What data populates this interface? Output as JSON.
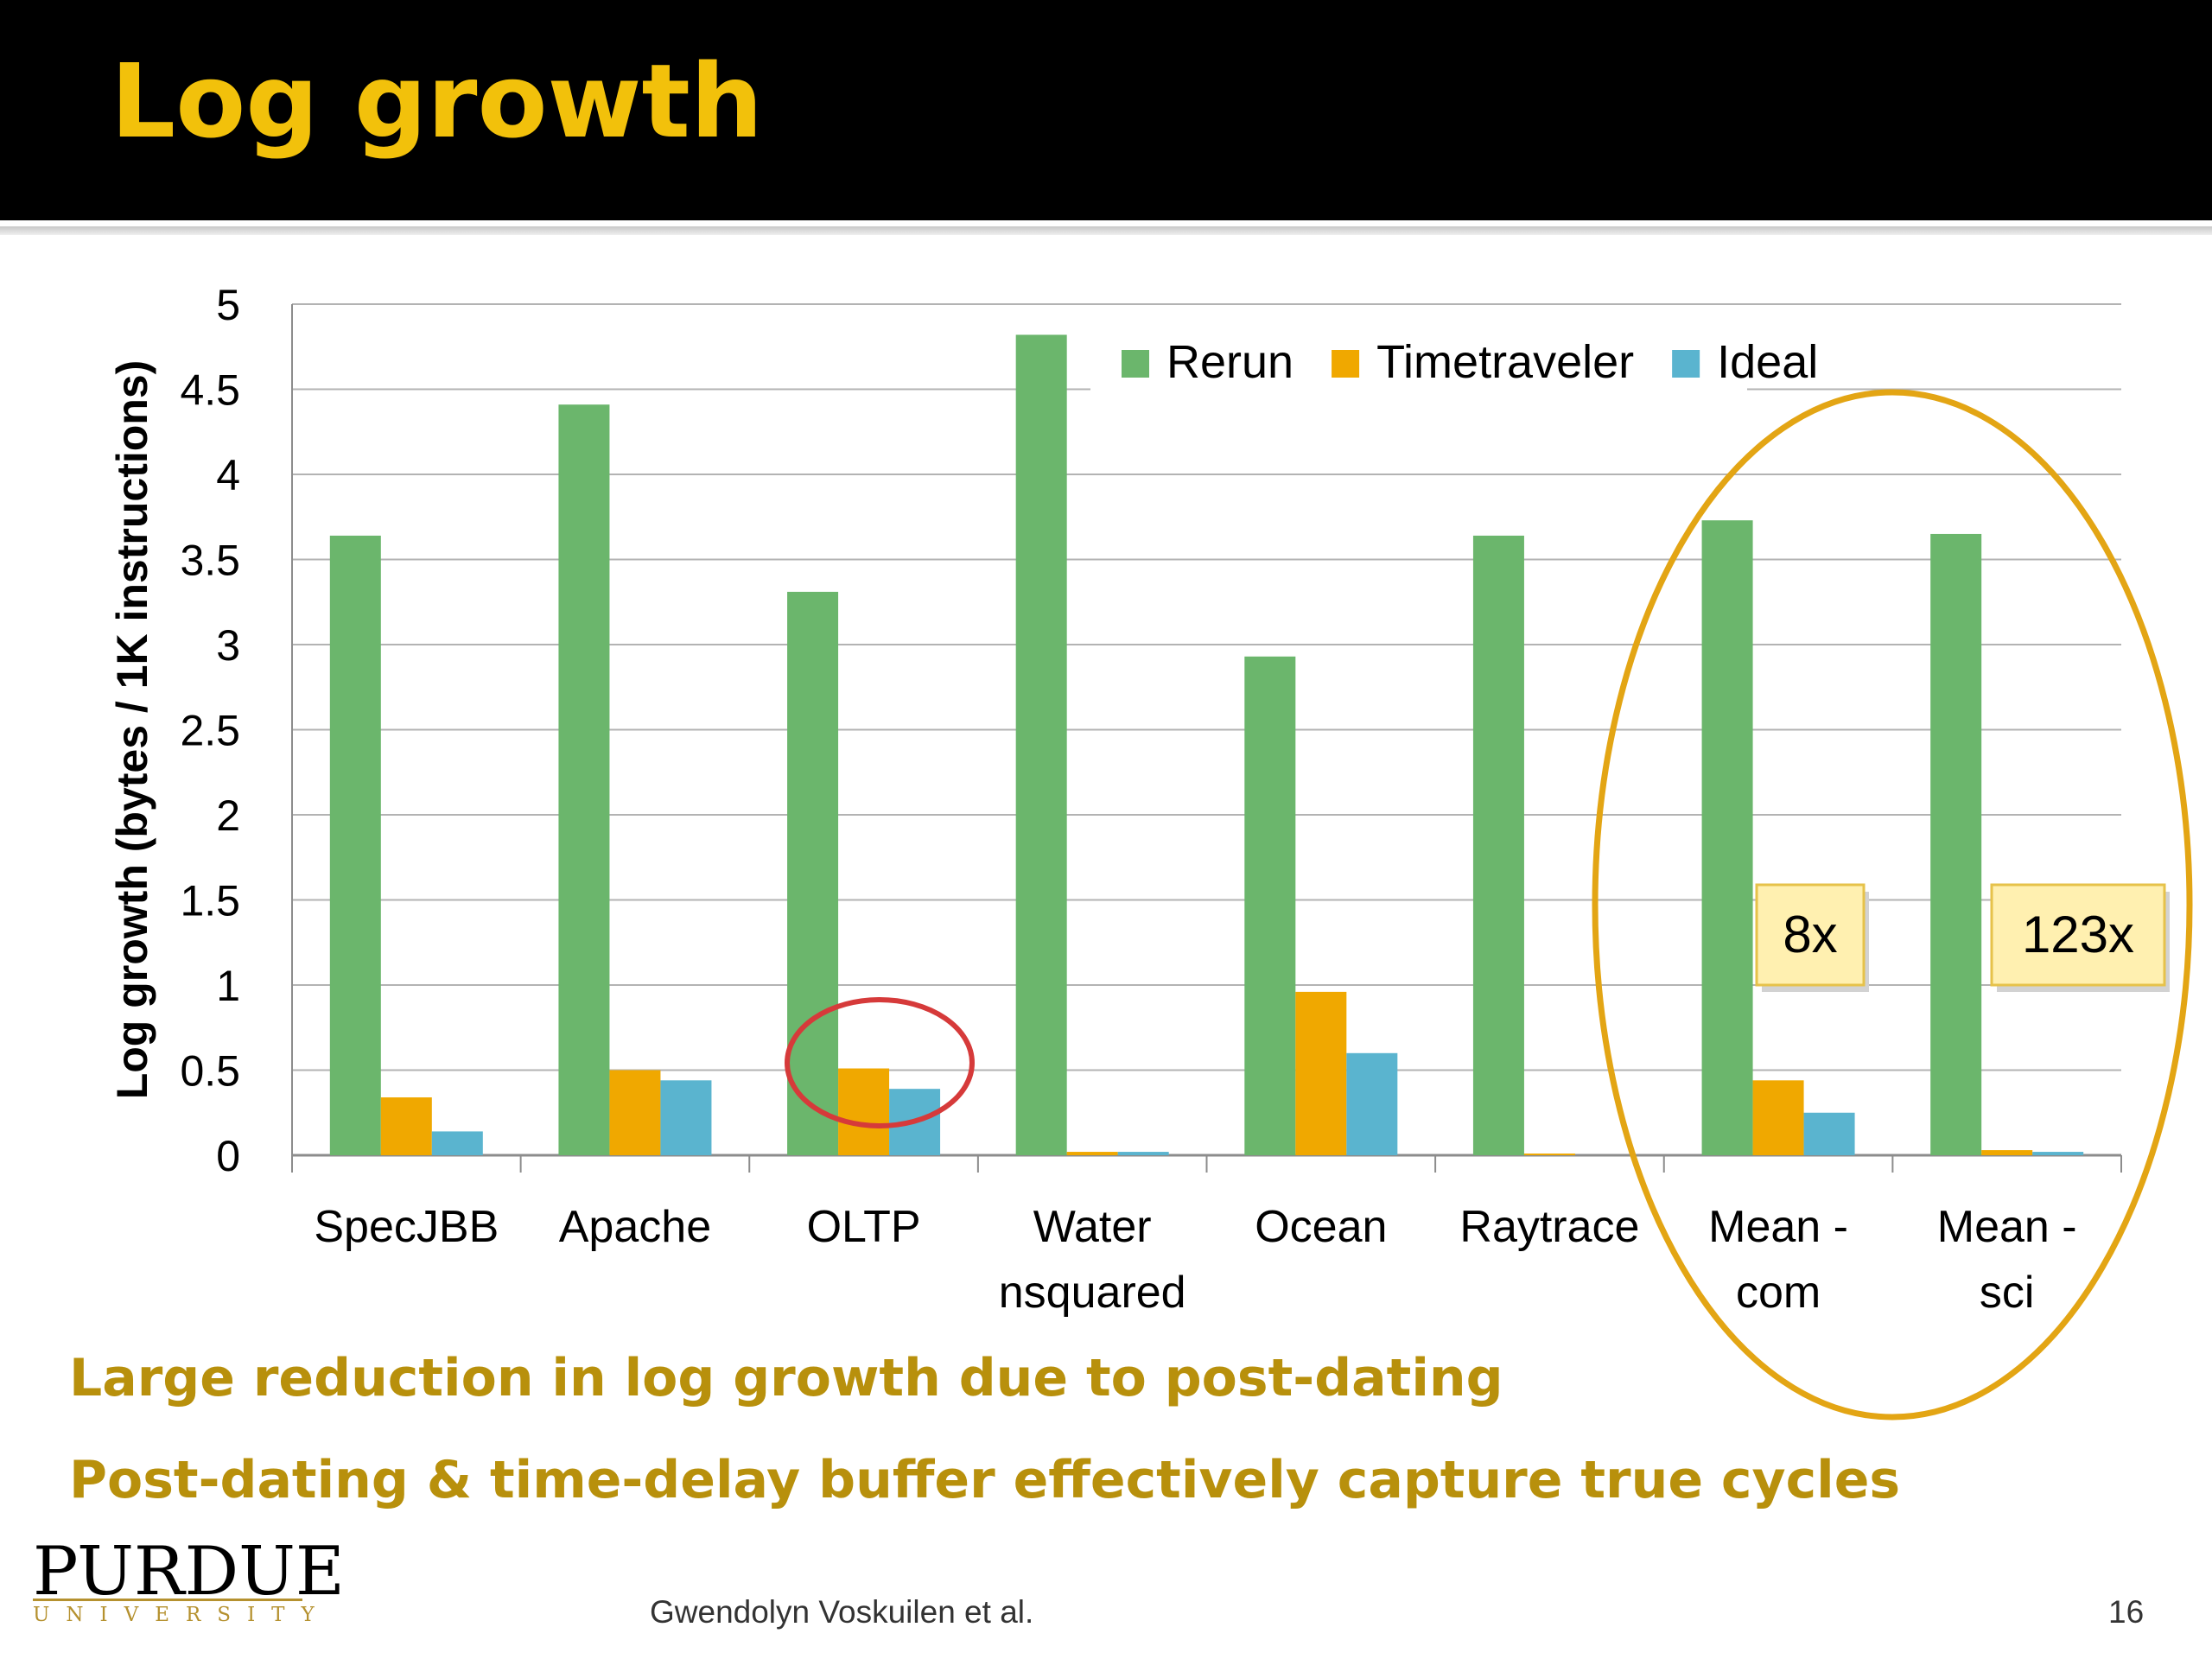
{
  "slide": {
    "title": "Log growth",
    "bullets": [
      "Large reduction in log growth due to post-dating",
      "Post-dating & time-delay buffer effectively capture true cycles"
    ],
    "footer_author": "Gwendolyn Voskuilen et al.",
    "page_number": "16",
    "logo_main": "PURDUE",
    "logo_sub": "UNIVERSITY"
  },
  "chart_data": {
    "type": "bar",
    "ylabel": "Log growth (bytes / 1K instructions)",
    "ylim": [
      0,
      5
    ],
    "yticks": [
      "0",
      "0.5",
      "1",
      "1.5",
      "2",
      "2.5",
      "3",
      "3.5",
      "4",
      "4.5",
      "5"
    ],
    "grid": true,
    "legend_position": "top-right",
    "categories": [
      [
        "SpecJBB"
      ],
      [
        "Apache"
      ],
      [
        "OLTP"
      ],
      [
        "Water",
        "nsquared"
      ],
      [
        "Ocean"
      ],
      [
        "Raytrace"
      ],
      [
        "Mean -",
        "com"
      ],
      [
        "Mean -",
        "sci"
      ]
    ],
    "series": [
      {
        "name": "Rerun",
        "color": "#6bb66c",
        "values": [
          3.64,
          4.41,
          3.31,
          4.82,
          2.93,
          3.64,
          3.73,
          3.65
        ]
      },
      {
        "name": "Timetraveler",
        "color": "#f0a800",
        "values": [
          0.34,
          0.5,
          0.51,
          0.02,
          0.96,
          0.01,
          0.44,
          0.03
        ]
      },
      {
        "name": "Ideal",
        "color": "#5ab4cf",
        "values": [
          0.14,
          0.44,
          0.39,
          0.02,
          0.6,
          0.0,
          0.25,
          0.02
        ]
      }
    ],
    "annotations": [
      {
        "text": "8x",
        "category": "Mean -\ncom"
      },
      {
        "text": "123x",
        "category": "Mean -\nsci"
      }
    ],
    "highlight_colors": {
      "ellipse_means": "#e3a514",
      "circle_oltp": "#d63a3a"
    }
  }
}
